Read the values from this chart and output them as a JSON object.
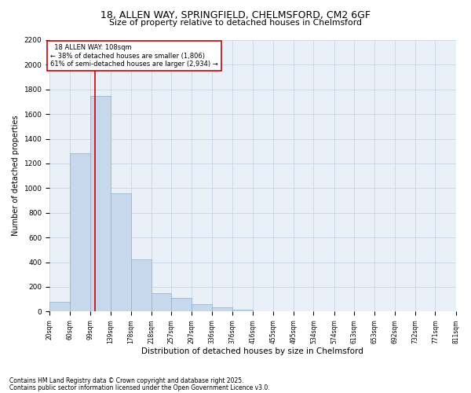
{
  "title_line1": "18, ALLEN WAY, SPRINGFIELD, CHELMSFORD, CM2 6GF",
  "title_line2": "Size of property relative to detached houses in Chelmsford",
  "xlabel": "Distribution of detached houses by size in Chelmsford",
  "ylabel": "Number of detached properties",
  "bar_color": "#c8d8ec",
  "bar_edge_color": "#8ab0cc",
  "grid_color": "#c5d5e5",
  "bg_color": "#eaf0f8",
  "annotation_box_color": "#cc0000",
  "vline_color": "#cc0000",
  "bins": [
    20,
    60,
    99,
    139,
    178,
    218,
    257,
    297,
    336,
    376,
    416,
    455,
    495,
    534,
    574,
    613,
    653,
    692,
    732,
    771,
    811
  ],
  "bin_labels": [
    "20sqm",
    "60sqm",
    "99sqm",
    "139sqm",
    "178sqm",
    "218sqm",
    "257sqm",
    "297sqm",
    "336sqm",
    "376sqm",
    "416sqm",
    "455sqm",
    "495sqm",
    "534sqm",
    "574sqm",
    "613sqm",
    "653sqm",
    "692sqm",
    "732sqm",
    "771sqm",
    "811sqm"
  ],
  "counts": [
    80,
    1280,
    1750,
    960,
    420,
    150,
    110,
    60,
    35,
    15,
    5,
    3,
    2,
    1,
    1,
    0,
    0,
    0,
    0,
    0
  ],
  "property_size": 108,
  "property_name": "18 ALLEN WAY",
  "property_sqm": "108sqm",
  "pct_smaller": 38,
  "num_smaller": 1806,
  "pct_larger": 61,
  "num_larger": 2934,
  "ylim_max": 2200,
  "yticks": [
    0,
    200,
    400,
    600,
    800,
    1000,
    1200,
    1400,
    1600,
    1800,
    2000,
    2200
  ],
  "footer_line1": "Contains HM Land Registry data © Crown copyright and database right 2025.",
  "footer_line2": "Contains public sector information licensed under the Open Government Licence v3.0."
}
